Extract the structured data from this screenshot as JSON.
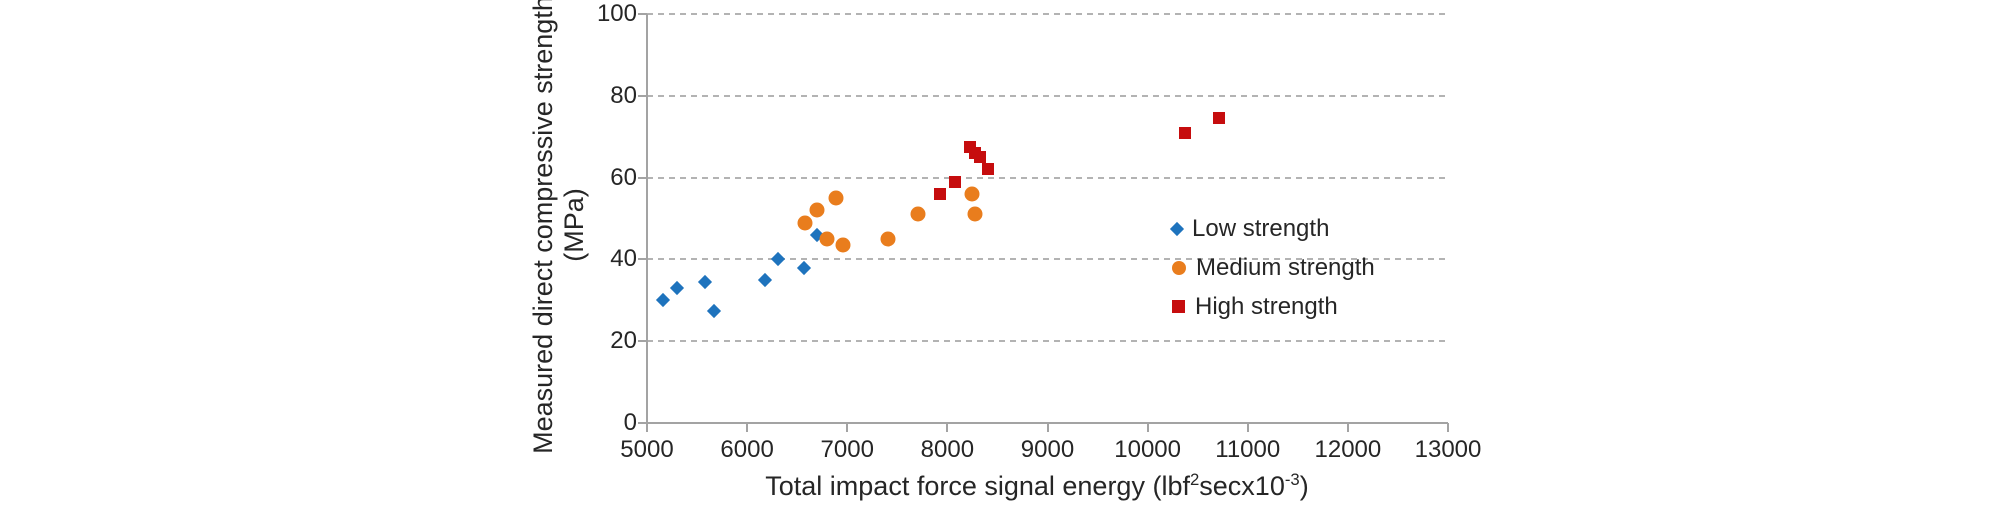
{
  "chart_data": {
    "type": "scatter",
    "title": "",
    "xlabel": "Total impact force signal energy (lbf2secx10-3)",
    "xlabel_parts": {
      "pre": "Total impact force signal energy (lbf",
      "sup1": "2",
      "mid": "secx10",
      "sup2": "-3",
      "post": ")"
    },
    "ylabel_line1": "Measured direct compressive strength",
    "ylabel_line2": "(MPa)",
    "xlim": [
      5000,
      13000
    ],
    "ylim": [
      0,
      100
    ],
    "x_ticks": [
      5000,
      6000,
      7000,
      8000,
      9000,
      10000,
      11000,
      12000,
      13000
    ],
    "y_ticks": [
      0,
      20,
      40,
      60,
      80,
      100
    ],
    "grid": "horizontal-dashed",
    "legend_position": "inside-right",
    "colors": {
      "low": "#1E73BD",
      "medium": "#E97D1D",
      "high": "#C60D0E",
      "axis": "#A3A3A3",
      "gridline": "#B3B3B3",
      "text": "#262626"
    },
    "series": [
      {
        "name": "Low strength",
        "marker": "diamond",
        "color": "#1E73BD",
        "points": [
          [
            5160,
            30
          ],
          [
            5300,
            33
          ],
          [
            5580,
            34.5
          ],
          [
            5670,
            27.5
          ],
          [
            6175,
            35
          ],
          [
            6305,
            40
          ],
          [
            6565,
            38
          ],
          [
            6700,
            46
          ]
        ]
      },
      {
        "name": "Medium strength",
        "marker": "circle",
        "color": "#E97D1D",
        "points": [
          [
            6575,
            49
          ],
          [
            6695,
            52
          ],
          [
            6795,
            45
          ],
          [
            6885,
            55
          ],
          [
            6960,
            43.5
          ],
          [
            7410,
            45
          ],
          [
            7710,
            51
          ],
          [
            8245,
            56
          ],
          [
            8275,
            51
          ]
        ]
      },
      {
        "name": "High strength",
        "marker": "square",
        "color": "#C60D0E",
        "points": [
          [
            7925,
            56
          ],
          [
            8080,
            59
          ],
          [
            8230,
            67.5
          ],
          [
            8280,
            66
          ],
          [
            8330,
            65
          ],
          [
            8410,
            62
          ],
          [
            10375,
            71
          ],
          [
            10715,
            74.5
          ]
        ]
      }
    ]
  }
}
